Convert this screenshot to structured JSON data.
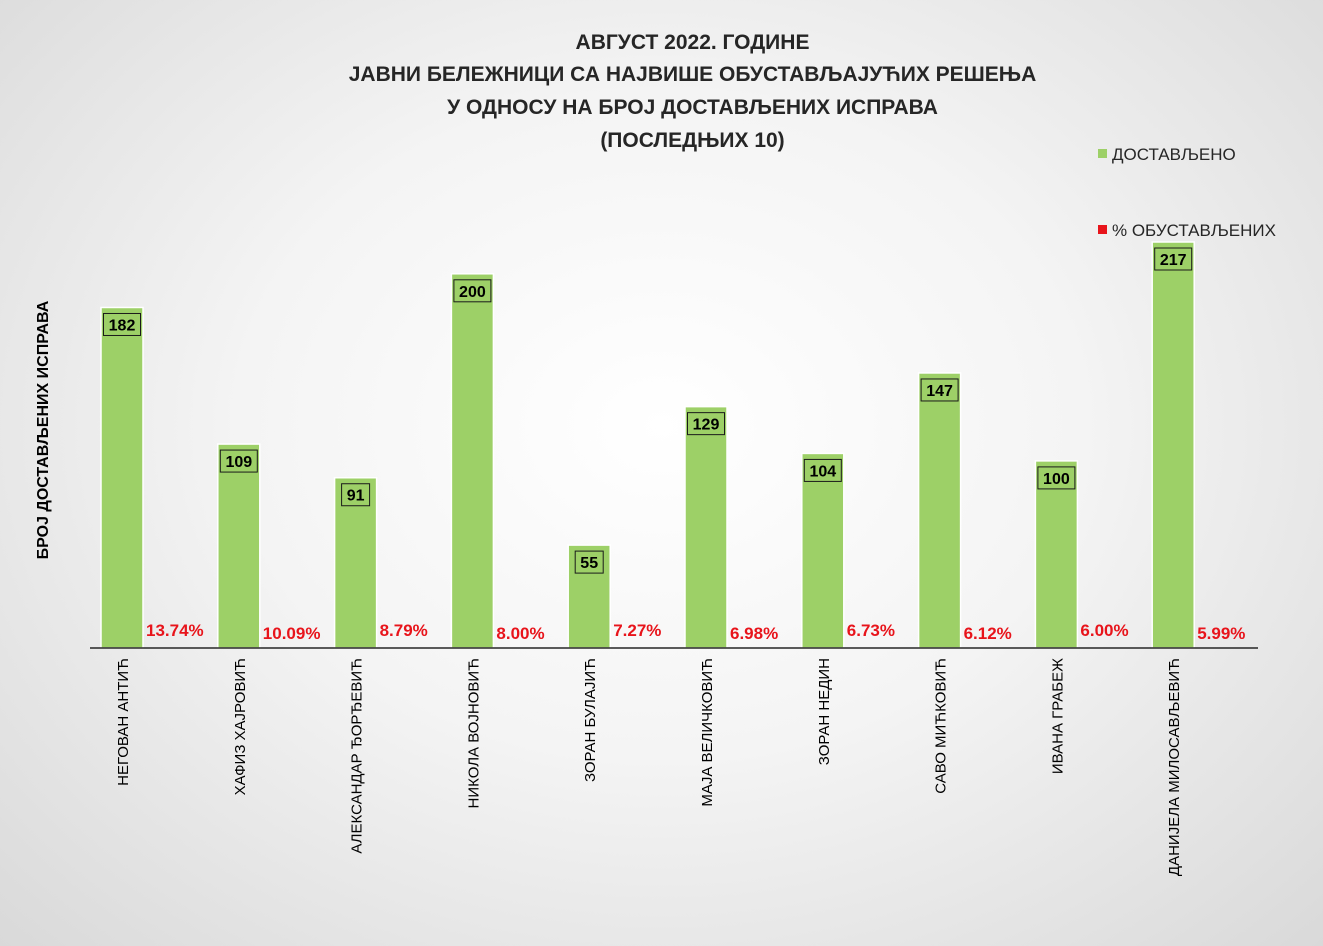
{
  "chart_data": {
    "type": "bar",
    "title_lines": [
      "АВГУСТ 2022. ГОДИНЕ",
      "ЈАВНИ БЕЛЕЖНИЦИ СА НАЈВИШЕ ОБУСТАВЉАЈУЋИХ РЕШЕЊА",
      "У ОДНОСУ НА БРОЈ ДОСТАВЉЕНИХ ИСПРАВА",
      "(ПОСЛЕДЊИХ 10)"
    ],
    "ylabel": "БРОЈ ДОСТАВЉЕНИХ ИСПРАВА",
    "xlabel": "",
    "categories": [
      "НЕГОВАН АНТИЋ",
      "ХАФИЗ ХАЈРОВИЋ",
      "АЛЕКСАНДАР ЂОРЂЕВИЋ",
      "НИКОЛА ВОЈНОВИЋ",
      "ЗОРАН БУЛАЈИЋ",
      "МАЈА ВЕЛИЧКОВИЋ",
      "ЗОРАН НЕДИН",
      "САВО МИЋКОВИЋ",
      "ИВАНА ГРАБЕЖ",
      "ДАНИЈЕЛА МИЛОСАВЉЕВИЋ"
    ],
    "series": [
      {
        "name": "ДОСТАВЉЕНО",
        "color": "#9dd067",
        "values": [
          182,
          109,
          91,
          200,
          55,
          129,
          104,
          147,
          100,
          217
        ],
        "labels": [
          "182",
          "109",
          "91",
          "200",
          "55",
          "129",
          "104",
          "147",
          "100",
          "217"
        ]
      },
      {
        "name": "% ОБУСТАВЉЕНИХ",
        "color": "#e8141b",
        "values": [
          13.74,
          10.09,
          8.79,
          8.0,
          7.27,
          6.98,
          6.73,
          6.12,
          6.0,
          5.99
        ],
        "labels": [
          "13.74%",
          "10.09%",
          "8.79%",
          "8.00%",
          "7.27%",
          "6.98%",
          "6.73%",
          "6.12%",
          "6.00%",
          "5.99%"
        ]
      }
    ],
    "ylim": [
      0,
      217
    ],
    "legend_position": "top-right",
    "grid": false
  }
}
